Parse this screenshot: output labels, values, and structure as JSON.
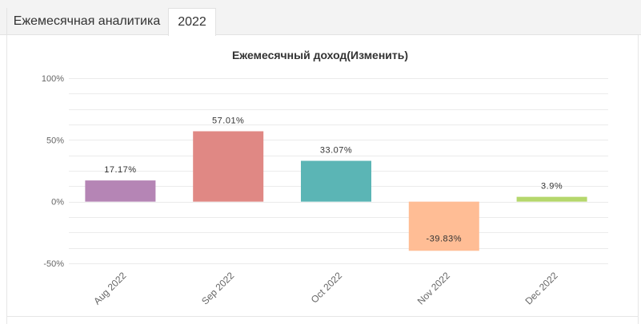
{
  "tabs": [
    {
      "label": "Ежемесячная аналитика",
      "active": false
    },
    {
      "label": "2022",
      "active": true
    }
  ],
  "chart_data": {
    "type": "bar",
    "title": "Ежемесячный доход(Изменить)",
    "categories": [
      "Aug 2022",
      "Sep 2022",
      "Oct 2022",
      "Nov 2022",
      "Dec 2022"
    ],
    "values": [
      17.17,
      57.01,
      33.07,
      -39.83,
      3.9
    ],
    "data_labels": [
      "17.17%",
      "57.01%",
      "33.07%",
      "-39.83%",
      "3.9%"
    ],
    "colors": [
      "#b585b5",
      "#e08884",
      "#5bb5b5",
      "#ffbd95",
      "#b5d76c"
    ],
    "ylim": [
      -50,
      100
    ],
    "yticks": [
      100,
      50,
      0,
      -50
    ],
    "ytick_labels": [
      "100%",
      "50%",
      "0%",
      "-50%"
    ],
    "xlabel": "",
    "ylabel": "",
    "grid": true,
    "legend": false
  }
}
